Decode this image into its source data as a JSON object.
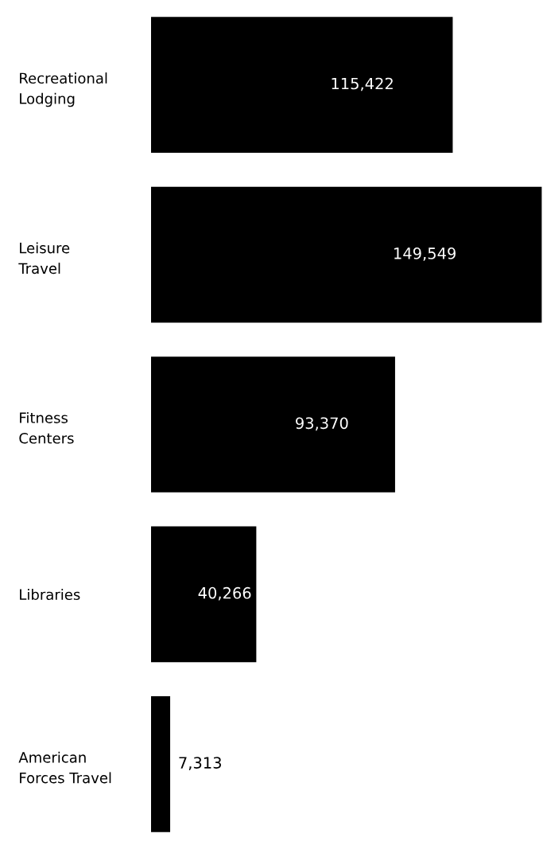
{
  "chart_data": {
    "type": "bar",
    "orientation": "horizontal",
    "categories": [
      "Recreational\nLodging",
      "Leisure\nTravel",
      "Fitness\nCenters",
      "Libraries",
      "American\nForces Travel"
    ],
    "values": [
      115422,
      149549,
      93370,
      40266,
      7313
    ],
    "color": "#000000",
    "value_labels": [
      "115,422",
      "149,549",
      "93,370",
      "40,266",
      "7,313"
    ],
    "grid": false,
    "legend": false
  }
}
